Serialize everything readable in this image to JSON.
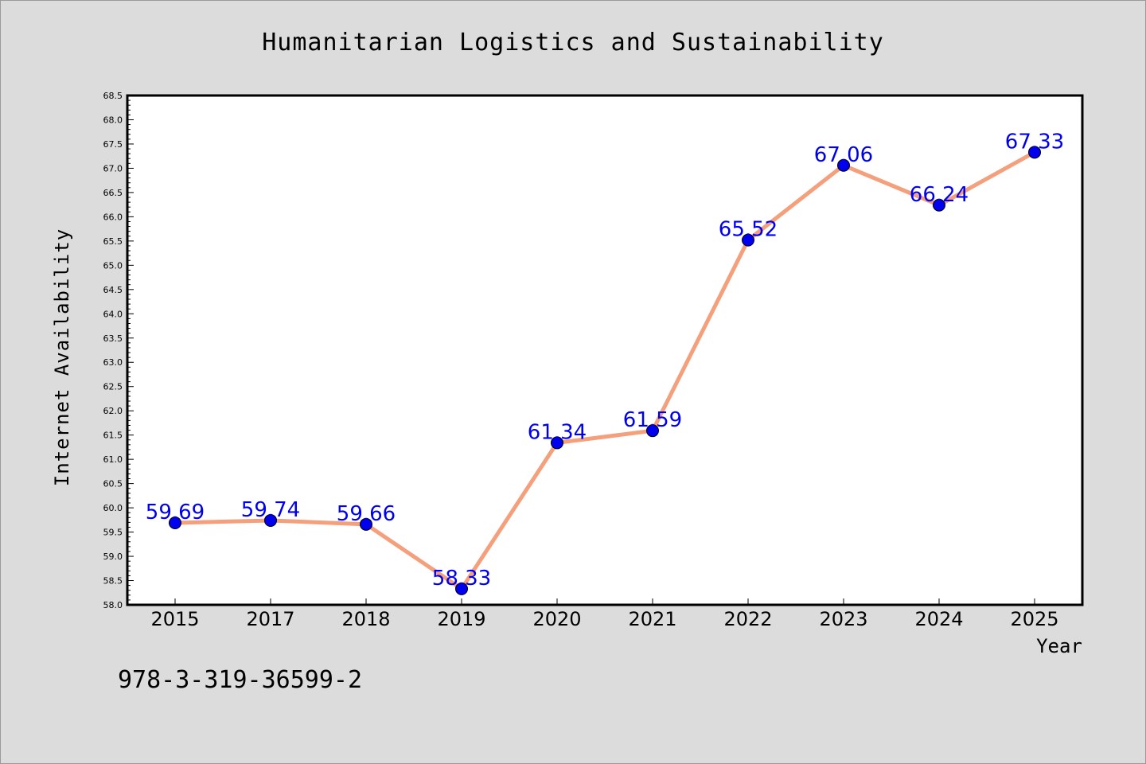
{
  "chart_data": {
    "type": "line",
    "title": "Humanitarian Logistics and Sustainability",
    "xlabel": "Year",
    "ylabel": "Internet Availability",
    "categories": [
      "2015",
      "2017",
      "2018",
      "2019",
      "2020",
      "2021",
      "2022",
      "2023",
      "2024",
      "2025"
    ],
    "values": [
      59.69,
      59.74,
      59.66,
      58.33,
      61.34,
      61.59,
      65.52,
      67.06,
      66.24,
      67.33
    ],
    "data_labels": [
      "59.69",
      "59.74",
      "59.66",
      "58.33",
      "61.34",
      "61.59",
      "65.52",
      "67.06",
      "66.24",
      "67.33"
    ],
    "ylim": [
      58.0,
      68.5
    ],
    "yticks": [
      "58.0",
      "58.5",
      "59.0",
      "59.5",
      "60.0",
      "60.5",
      "61.0",
      "61.5",
      "62.0",
      "62.5",
      "63.0",
      "63.5",
      "64.0",
      "64.5",
      "65.0",
      "65.5",
      "66.0",
      "66.5",
      "67.0",
      "67.5",
      "68.0",
      "68.5"
    ],
    "grid": false,
    "legend": "none",
    "colors": {
      "line": "#f4a07c",
      "marker": "#0000ee",
      "label": "#0000ee",
      "background": "#dcdcdc",
      "plot_background": "#ffffff"
    }
  },
  "footer": {
    "isbn": "978-3-319-36599-2"
  }
}
